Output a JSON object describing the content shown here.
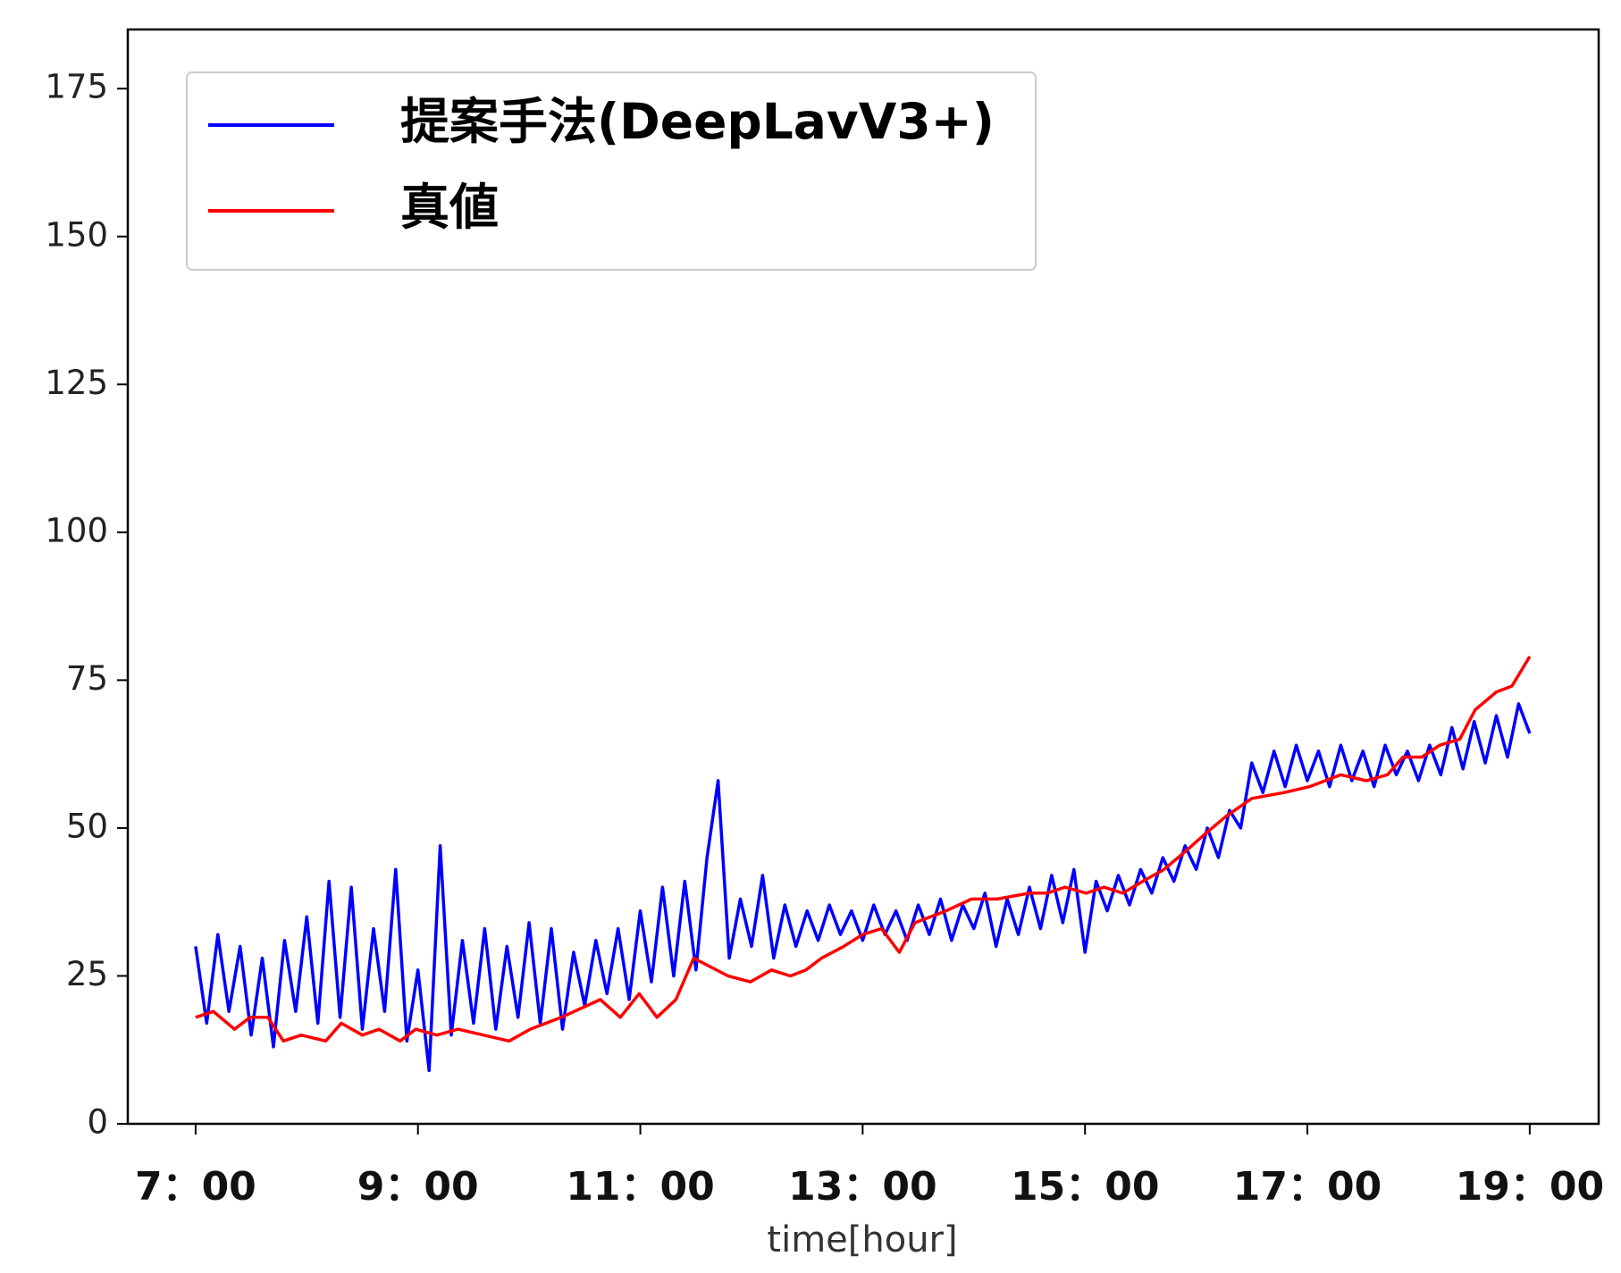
{
  "chart_data": {
    "type": "line",
    "xlabel": "time[hour]",
    "xlim": [
      6.39,
      19.62
    ],
    "ylim": [
      0,
      185
    ],
    "xticks": [
      {
        "value": 7,
        "label": "7：00"
      },
      {
        "value": 9,
        "label": "9：00"
      },
      {
        "value": 11,
        "label": "11：00"
      },
      {
        "value": 13,
        "label": "13：00"
      },
      {
        "value": 15,
        "label": "15：00"
      },
      {
        "value": 17,
        "label": "17：00"
      },
      {
        "value": 19,
        "label": "19：00"
      }
    ],
    "yticks": [
      0,
      25,
      50,
      75,
      100,
      125,
      150,
      175
    ],
    "legend": "upper left",
    "series": [
      {
        "name": "提案手法(DeepLavV3+)",
        "color": "#0000ff",
        "x": [
          7.0,
          7.1,
          7.2,
          7.3,
          7.4,
          7.5,
          7.6,
          7.7,
          7.8,
          7.9,
          8.0,
          8.1,
          8.2,
          8.3,
          8.4,
          8.5,
          8.6,
          8.7,
          8.8,
          8.9,
          9.0,
          9.1,
          9.2,
          9.3,
          9.4,
          9.5,
          9.6,
          9.7,
          9.8,
          9.9,
          10.0,
          10.1,
          10.2,
          10.3,
          10.4,
          10.5,
          10.6,
          10.7,
          10.8,
          10.9,
          11.0,
          11.1,
          11.2,
          11.3,
          11.4,
          11.5,
          11.6,
          11.7,
          11.8,
          11.9,
          12.0,
          12.1,
          12.2,
          12.3,
          12.4,
          12.5,
          12.6,
          12.7,
          12.8,
          12.9,
          13.0,
          13.1,
          13.2,
          13.3,
          13.4,
          13.5,
          13.6,
          13.7,
          13.8,
          13.9,
          14.0,
          14.1,
          14.2,
          14.3,
          14.4,
          14.5,
          14.6,
          14.7,
          14.8,
          14.9,
          15.0,
          15.1,
          15.2,
          15.3,
          15.4,
          15.5,
          15.6,
          15.7,
          15.8,
          15.9,
          16.0,
          16.1,
          16.2,
          16.3,
          16.4,
          16.5,
          16.6,
          16.7,
          16.8,
          16.9,
          17.0,
          17.1,
          17.2,
          17.3,
          17.4,
          17.5,
          17.6,
          17.7,
          17.8,
          17.9,
          18.0,
          18.1,
          18.2,
          18.3,
          18.4,
          18.5,
          18.6,
          18.7,
          18.8,
          18.9,
          19.0
        ],
        "values": [
          30,
          17,
          32,
          19,
          30,
          15,
          28,
          13,
          31,
          19,
          35,
          17,
          41,
          18,
          40,
          16,
          33,
          19,
          43,
          14,
          26,
          9,
          47,
          15,
          31,
          17,
          33,
          16,
          30,
          18,
          34,
          17,
          33,
          16,
          29,
          20,
          31,
          22,
          33,
          21,
          36,
          24,
          40,
          25,
          41,
          26,
          45,
          58,
          28,
          38,
          30,
          42,
          28,
          37,
          30,
          36,
          31,
          37,
          32,
          36,
          31,
          37,
          32,
          36,
          31,
          37,
          32,
          38,
          31,
          37,
          33,
          39,
          30,
          38,
          32,
          40,
          33,
          42,
          34,
          43,
          29,
          41,
          36,
          42,
          37,
          43,
          39,
          45,
          41,
          47,
          43,
          50,
          45,
          53,
          50,
          61,
          56,
          63,
          57,
          64,
          58,
          63,
          57,
          64,
          58,
          63,
          57,
          64,
          59,
          63,
          58,
          64,
          59,
          67,
          60,
          68,
          61,
          69,
          62,
          71,
          66
        ]
      },
      {
        "name": "真値",
        "color": "#ff0000",
        "x": [
          7.0,
          7.16,
          7.35,
          7.49,
          7.65,
          7.79,
          7.95,
          8.17,
          8.31,
          8.5,
          8.65,
          8.84,
          8.98,
          9.17,
          9.36,
          9.59,
          9.82,
          10.01,
          10.29,
          10.64,
          10.82,
          10.99,
          11.15,
          11.32,
          11.48,
          11.79,
          11.99,
          12.18,
          12.35,
          12.49,
          12.63,
          12.83,
          13.0,
          13.17,
          13.33,
          13.47,
          13.75,
          13.98,
          14.21,
          14.5,
          14.66,
          14.82,
          15.01,
          15.17,
          15.34,
          15.52,
          15.71,
          15.9,
          16.08,
          16.27,
          16.5,
          16.79,
          17.02,
          17.3,
          17.53,
          17.72,
          17.86,
          18.03,
          18.19,
          18.37,
          18.51,
          18.7,
          18.84,
          19.0
        ],
        "values": [
          18,
          19,
          16,
          18,
          18,
          14,
          15,
          14,
          17,
          15,
          16,
          14,
          16,
          15,
          16,
          15,
          14,
          16,
          18,
          21,
          18,
          22,
          18,
          21,
          28,
          25,
          24,
          26,
          25,
          26,
          28,
          30,
          32,
          33,
          29,
          34,
          36,
          38,
          38,
          39,
          39,
          40,
          39,
          40,
          39,
          41,
          43,
          46,
          49,
          52,
          55,
          56,
          57,
          59,
          58,
          59,
          62,
          62,
          64,
          65,
          70,
          73,
          74,
          79
        ]
      }
    ]
  }
}
